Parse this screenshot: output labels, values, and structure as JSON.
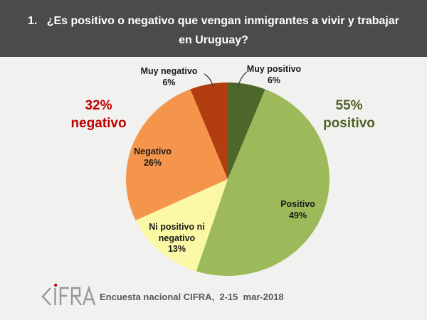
{
  "header": {
    "title_line1": "1.   ¿Es positivo o negativo que vengan inmigrantes a vivir y trabajar",
    "title_line2": "en Uruguay?",
    "bg_color": "#4B4B4B",
    "text_color": "#FFFFFF"
  },
  "chart_data": {
    "type": "pie",
    "title": "¿Es positivo o negativo que vengan inmigrantes a vivir y trabajar en Uruguay?",
    "start_angle_deg": 0,
    "direction": "clockwise",
    "slices": [
      {
        "label": "Muy positivo",
        "value": 6,
        "pct_label": "6%",
        "color": "#4D672B"
      },
      {
        "label": "Positivo",
        "value": 49,
        "pct_label": "49%",
        "color": "#9CBA59"
      },
      {
        "label": "Ni positivo ni negativo",
        "value": 13,
        "pct_label": "13%",
        "color": "#FAF8A5"
      },
      {
        "label": "Negativo",
        "value": 26,
        "pct_label": "26%",
        "color": "#F5954B"
      },
      {
        "label": "Muy negativo",
        "value": 6,
        "pct_label": "6%",
        "color": "#B23E10"
      }
    ],
    "annotations": [
      {
        "side": "right",
        "pct": "55%",
        "word": "positivo",
        "color": "#4F6228"
      },
      {
        "side": "left",
        "pct": "32%",
        "word": "negativo",
        "color": "#C00000"
      }
    ],
    "legend": "none",
    "labels_position": "inside-and-callout"
  },
  "footer": {
    "logo_text": "CIFRA",
    "logo_color": "#979797",
    "logo_dot_color": "#C00000",
    "source_text": "Encuesta nacional CIFRA,  2-15  mar-2018"
  }
}
